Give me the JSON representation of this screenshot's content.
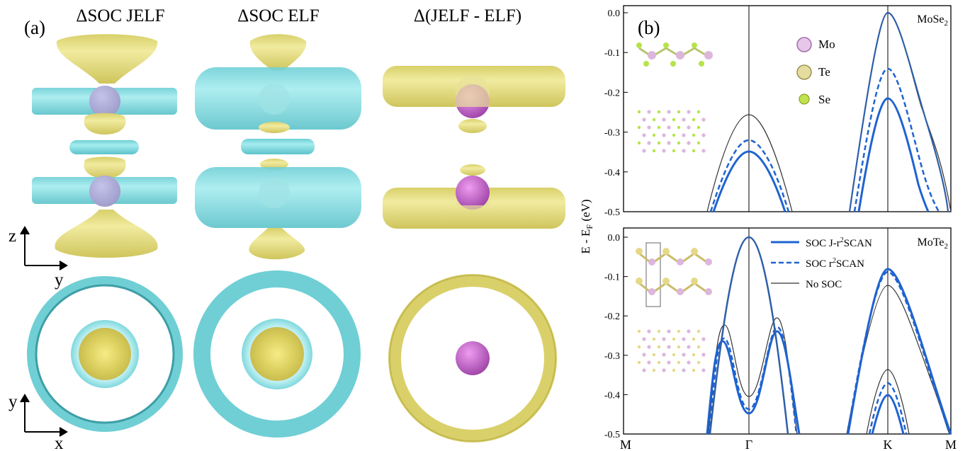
{
  "panel_a": {
    "label": "(a)",
    "columns": [
      "ΔSOC JELF",
      "ΔSOC ELF",
      "Δ(JELF - ELF)"
    ],
    "axes_side": {
      "vertical": "z",
      "horizontal": "y"
    },
    "axes_top": {
      "vertical": "y",
      "horizontal": "x"
    },
    "colors": {
      "cyan": "#74D7DC",
      "yellow": "#E3DC7A",
      "magenta": "#B25FB8"
    }
  },
  "panel_b": {
    "label": "(b)",
    "ylabel_main": "E - E",
    "ylabel_sub": "F",
    "ylabel_unit": " (eV)",
    "kpoints": [
      "M",
      "Γ",
      "K",
      "M"
    ],
    "legend_atoms": [
      "Mo",
      "Te",
      "Se"
    ],
    "legend_lines": [
      {
        "text_a": "SOC J-r",
        "sup": "2",
        "text_b": "SCAN",
        "style": "solid",
        "color": "#1f63d0"
      },
      {
        "text_a": "SOC r",
        "sup": "2",
        "text_b": "SCAN",
        "style": "dashed",
        "color": "#1f63d0"
      },
      {
        "text_a": "No SOC",
        "sup": "",
        "text_b": "",
        "style": "thin",
        "color": "#333333"
      }
    ]
  },
  "chart_data": [
    {
      "type": "line",
      "material": {
        "base": "MoSe",
        "sub": "2"
      },
      "yticks": [
        "0.0",
        "-0.1",
        "-0.2",
        "-0.3",
        "-0.4",
        "-0.5"
      ],
      "ylim": [
        -0.5,
        0.0
      ],
      "x_labels": [
        "M",
        "Γ",
        "K",
        "M"
      ],
      "series": [
        {
          "name": "No SOC",
          "peaks": [
            {
              "at": "Γ",
              "E": -0.255
            },
            {
              "at": "K",
              "E": 0.0
            }
          ]
        },
        {
          "name": "SOC r2SCAN",
          "peaks": [
            {
              "at": "Γ",
              "E": -0.32
            },
            {
              "at": "K",
              "E": -0.14
            },
            {
              "at": "K",
              "E": 0.0
            }
          ]
        },
        {
          "name": "SOC J-r2SCAN",
          "peaks": [
            {
              "at": "Γ",
              "E": -0.345
            },
            {
              "at": "K",
              "E": -0.215
            },
            {
              "at": "K",
              "E": 0.0
            }
          ]
        }
      ]
    },
    {
      "type": "line",
      "material": {
        "base": "MoTe",
        "sub": "2"
      },
      "yticks": [
        "0.0",
        "-0.1",
        "-0.2",
        "-0.3",
        "-0.4",
        "-0.5"
      ],
      "ylim": [
        -0.5,
        0.0
      ],
      "x_labels": [
        "M",
        "Γ",
        "K",
        "M"
      ],
      "series": [
        {
          "name": "No SOC",
          "peaks": [
            {
              "at": "Γ",
              "E": 0.0
            },
            {
              "at": "K",
              "E": -0.122
            },
            {
              "at": "K",
              "E": -0.335
            }
          ]
        },
        {
          "name": "SOC r2SCAN",
          "peaks": [
            {
              "at": "Γ",
              "E": 0.0
            },
            {
              "at": "K",
              "E": -0.095
            },
            {
              "at": "K",
              "E": -0.37
            }
          ]
        },
        {
          "name": "SOC J-r2SCAN",
          "peaks": [
            {
              "at": "Γ",
              "E": 0.0
            },
            {
              "at": "K",
              "E": -0.085
            },
            {
              "at": "K",
              "E": -0.4
            }
          ]
        }
      ]
    }
  ]
}
